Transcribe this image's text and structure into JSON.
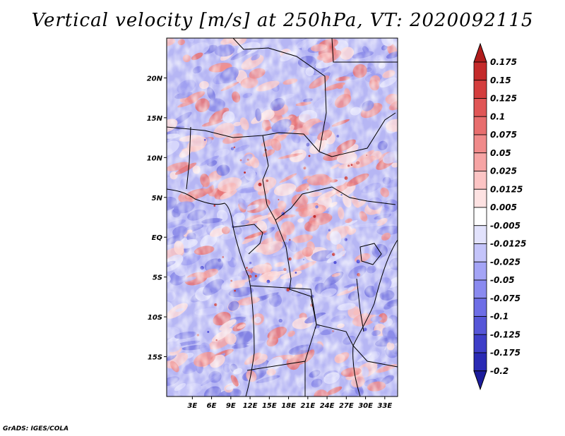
{
  "title": "Vertical velocity [m/s] at 250hPa, VT: 2020092115",
  "credit": "GrADS: IGES/COLA",
  "map": {
    "lon_range": [
      -1,
      35
    ],
    "lat_range": [
      -20,
      25
    ],
    "lat_ticks": [
      {
        "value": 20,
        "label": "20N"
      },
      {
        "value": 15,
        "label": "15N"
      },
      {
        "value": 10,
        "label": "10N"
      },
      {
        "value": 5,
        "label": "5N"
      },
      {
        "value": 0,
        "label": "EQ"
      },
      {
        "value": -5,
        "label": "5S"
      },
      {
        "value": -10,
        "label": "10S"
      },
      {
        "value": -15,
        "label": "15S"
      }
    ],
    "lon_ticks": [
      {
        "value": 3,
        "label": "3E"
      },
      {
        "value": 6,
        "label": "6E"
      },
      {
        "value": 9,
        "label": "9E"
      },
      {
        "value": 12,
        "label": "12E"
      },
      {
        "value": 15,
        "label": "15E"
      },
      {
        "value": 18,
        "label": "18E"
      },
      {
        "value": 21,
        "label": "21E"
      },
      {
        "value": 24,
        "label": "24E"
      },
      {
        "value": 27,
        "label": "27E"
      },
      {
        "value": 30,
        "label": "30E"
      },
      {
        "value": 33,
        "label": "33E"
      }
    ]
  },
  "colorbar": {
    "labels": [
      "0.175",
      "0.15",
      "0.125",
      "0.1",
      "0.075",
      "0.05",
      "0.025",
      "0.0125",
      "0.005",
      "-0.005",
      "-0.0125",
      "-0.025",
      "-0.05",
      "-0.075",
      "-0.1",
      "-0.125",
      "-0.175",
      "-0.2"
    ],
    "colors": [
      "#b01c1c",
      "#c42a2a",
      "#d43e3e",
      "#e05656",
      "#e86e6e",
      "#f08a8a",
      "#f6a4a4",
      "#fcc4c4",
      "#fde2e2",
      "#ffffff",
      "#e2e2fc",
      "#c4c4fa",
      "#a4a4f6",
      "#8a8af0",
      "#6e6ee6",
      "#5656d8",
      "#3e3ec8",
      "#2a2ab4",
      "#1c1c9c"
    ]
  }
}
